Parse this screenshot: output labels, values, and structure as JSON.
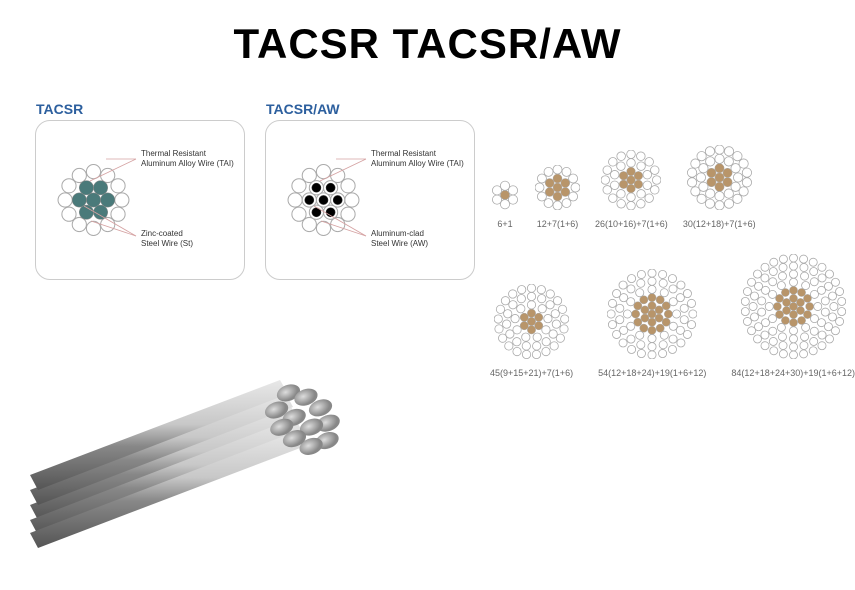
{
  "title": "TACSR TACSR/AW",
  "diagrams": {
    "tacsr": {
      "label": "TACSR",
      "outer_label": "Thermal Resistant\nAluminum Alloy Wire (TAI)",
      "core_label": "Zinc-coated\nSteel Wire (St)",
      "core_color": "#4a7a7a",
      "outer_color": "#ffffff"
    },
    "tacsr_aw": {
      "label": "TACSR/AW",
      "outer_label": "Thermal Resistant\nAluminum Alloy Wire (TAI)",
      "core_label": "Aluminum-clad\nSteel Wire (AW)",
      "core_color": "#000000",
      "outer_color": "#ffffff"
    }
  },
  "configs": [
    [
      {
        "label": "6+1",
        "rings": 1,
        "core": 1,
        "size": 30
      },
      {
        "label": "12+7(1+6)",
        "rings": 1,
        "core": 7,
        "size": 45
      },
      {
        "label": "26(10+16)+7(1+6)",
        "rings": 2,
        "core": 7,
        "size": 60
      },
      {
        "label": "30(12+18)+7(1+6)",
        "rings": 2,
        "core": 7,
        "size": 65,
        "outer18": true
      }
    ],
    [
      {
        "label": "45(9+15+21)+7(1+6)",
        "rings": 3,
        "core": 7,
        "size": 75
      },
      {
        "label": "54(12+18+24)+19(1+6+12)",
        "rings": 3,
        "core": 19,
        "size": 90
      },
      {
        "label": "84(12+18+24+30)+19(1+6+12)",
        "rings": 4,
        "core": 19,
        "size": 105
      }
    ]
  ],
  "colors": {
    "gold": "#b8956a",
    "white": "#ffffff",
    "border": "#aaaaaa",
    "text": "#666666",
    "title_blue": "#2c5f9e"
  }
}
